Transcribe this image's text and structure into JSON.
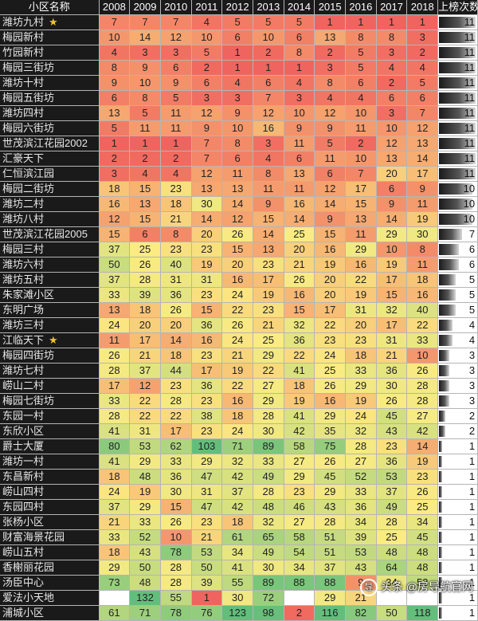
{
  "header": {
    "name_col": "小区名称",
    "years": [
      "2008",
      "2009",
      "2010",
      "2011",
      "2012",
      "2013",
      "2014",
      "2015",
      "2016",
      "2017",
      "2018"
    ],
    "count_col": "上榜次数"
  },
  "rows": [
    {
      "name": "潍坊九村",
      "star": "★",
      "ranks": [
        7,
        7,
        7,
        4,
        5,
        5,
        5,
        1,
        1,
        1,
        1
      ],
      "count": 11
    },
    {
      "name": "梅园新村",
      "ranks": [
        10,
        14,
        12,
        10,
        6,
        10,
        6,
        13,
        8,
        8,
        3
      ],
      "count": 11
    },
    {
      "name": "竹园新村",
      "ranks": [
        4,
        3,
        3,
        5,
        1,
        2,
        8,
        2,
        5,
        3,
        2
      ],
      "count": 11
    },
    {
      "name": "梅园三街坊",
      "ranks": [
        8,
        9,
        6,
        2,
        1,
        1,
        1,
        3,
        5,
        4,
        4
      ],
      "count": 11
    },
    {
      "name": "潍坊十村",
      "ranks": [
        9,
        10,
        9,
        6,
        4,
        6,
        4,
        8,
        6,
        2,
        5
      ],
      "count": 11
    },
    {
      "name": "梅园五街坊",
      "ranks": [
        6,
        8,
        5,
        3,
        3,
        7,
        3,
        4,
        4,
        6,
        6
      ],
      "count": 11
    },
    {
      "name": "潍坊四村",
      "ranks": [
        13,
        5,
        11,
        12,
        9,
        12,
        10,
        12,
        10,
        3,
        7
      ],
      "count": 11
    },
    {
      "name": "梅园六街坊",
      "ranks": [
        5,
        11,
        11,
        9,
        10,
        16,
        9,
        9,
        11,
        10,
        12
      ],
      "count": 11
    },
    {
      "name": "世茂滨江花园2002",
      "ranks": [
        1,
        1,
        1,
        7,
        8,
        3,
        11,
        5,
        2,
        12,
        13
      ],
      "count": 11
    },
    {
      "name": "汇豪天下",
      "ranks": [
        2,
        2,
        2,
        7,
        6,
        4,
        6,
        11,
        10,
        13,
        14
      ],
      "count": 11
    },
    {
      "name": "仁恒滨江园",
      "ranks": [
        3,
        4,
        4,
        12,
        11,
        8,
        13,
        6,
        7,
        20,
        17
      ],
      "count": 11
    },
    {
      "name": "梅园二街坊",
      "ranks": [
        18,
        15,
        23,
        13,
        13,
        11,
        11,
        12,
        17,
        6,
        9
      ],
      "count": 10
    },
    {
      "name": "潍坊二村",
      "ranks": [
        16,
        13,
        18,
        30,
        14,
        9,
        16,
        14,
        15,
        9,
        11
      ],
      "count": 10
    },
    {
      "name": "潍坊八村",
      "ranks": [
        12,
        15,
        21,
        14,
        12,
        15,
        14,
        9,
        13,
        14,
        19
      ],
      "count": 10
    },
    {
      "name": "世茂滨江花园2005",
      "ranks": [
        15,
        6,
        8,
        20,
        26,
        14,
        25,
        15,
        11,
        29,
        30
      ],
      "count": 7
    },
    {
      "name": "梅园三村",
      "ranks": [
        37,
        25,
        23,
        23,
        15,
        13,
        20,
        16,
        29,
        10,
        8
      ],
      "count": 6
    },
    {
      "name": "潍坊六村",
      "ranks": [
        50,
        26,
        40,
        19,
        20,
        23,
        21,
        19,
        16,
        19,
        11
      ],
      "count": 6
    },
    {
      "name": "潍坊五村",
      "ranks": [
        37,
        28,
        31,
        31,
        16,
        17,
        26,
        20,
        22,
        17,
        18
      ],
      "count": 5
    },
    {
      "name": "朱家滩小区",
      "ranks": [
        33,
        39,
        36,
        23,
        24,
        19,
        16,
        20,
        19,
        15,
        16
      ],
      "count": 5
    },
    {
      "name": "东明广场",
      "ranks": [
        13,
        18,
        26,
        15,
        22,
        23,
        15,
        17,
        31,
        32,
        40
      ],
      "count": 5
    },
    {
      "name": "潍坊三村",
      "ranks": [
        24,
        20,
        20,
        36,
        26,
        21,
        32,
        22,
        20,
        17,
        22
      ],
      "count": 4
    },
    {
      "name": "江临天下",
      "star": "★",
      "ranks": [
        11,
        17,
        14,
        16,
        24,
        25,
        36,
        23,
        23,
        31,
        33
      ],
      "count": 4
    },
    {
      "name": "梅园四街坊",
      "ranks": [
        26,
        21,
        18,
        23,
        21,
        29,
        22,
        24,
        18,
        21,
        10
      ],
      "count": 3
    },
    {
      "name": "潍坊七村",
      "ranks": [
        28,
        37,
        44,
        17,
        19,
        22,
        41,
        25,
        33,
        36,
        26
      ],
      "count": 3
    },
    {
      "name": "崂山二村",
      "ranks": [
        17,
        12,
        23,
        36,
        22,
        27,
        18,
        26,
        29,
        30,
        28
      ],
      "count": 3
    },
    {
      "name": "梅园七街坊",
      "ranks": [
        33,
        22,
        28,
        23,
        16,
        29,
        19,
        16,
        19,
        26,
        28
      ],
      "count": 3
    },
    {
      "name": "东园一村",
      "ranks": [
        28,
        22,
        22,
        38,
        18,
        28,
        41,
        29,
        24,
        45,
        27
      ],
      "count": 2
    },
    {
      "name": "东欣小区",
      "ranks": [
        41,
        31,
        17,
        23,
        24,
        30,
        42,
        35,
        32,
        43,
        42
      ],
      "count": 2
    },
    {
      "name": "爵士大厦",
      "ranks": [
        80,
        53,
        62,
        103,
        71,
        89,
        58,
        75,
        28,
        23,
        14
      ],
      "count": 1
    },
    {
      "name": "潍坊一村",
      "ranks": [
        41,
        29,
        33,
        29,
        32,
        33,
        27,
        26,
        27,
        36,
        19
      ],
      "count": 1
    },
    {
      "name": "东昌新村",
      "ranks": [
        18,
        48,
        36,
        47,
        42,
        49,
        29,
        45,
        52,
        53,
        23
      ],
      "count": 1
    },
    {
      "name": "崂山四村",
      "ranks": [
        24,
        19,
        30,
        31,
        37,
        28,
        23,
        29,
        33,
        37,
        26
      ],
      "count": 1
    },
    {
      "name": "东园四村",
      "ranks": [
        37,
        29,
        15,
        47,
        42,
        48,
        46,
        43,
        36,
        49,
        25
      ],
      "count": 1
    },
    {
      "name": "张杨小区",
      "ranks": [
        21,
        33,
        26,
        23,
        18,
        32,
        27,
        28,
        34,
        28,
        34
      ],
      "count": 1
    },
    {
      "name": "财富海景花园",
      "ranks": [
        33,
        52,
        10,
        21,
        61,
        65,
        58,
        51,
        39,
        25,
        45
      ],
      "count": 1
    },
    {
      "name": "崂山五村",
      "ranks": [
        18,
        43,
        78,
        53,
        34,
        49,
        54,
        51,
        53,
        48,
        48
      ],
      "count": 1
    },
    {
      "name": "香榭丽花园",
      "ranks": [
        29,
        50,
        28,
        50,
        41,
        30,
        34,
        37,
        43,
        64,
        48
      ],
      "count": 1
    },
    {
      "name": "汤臣中心",
      "ranks": [
        73,
        48,
        28,
        39,
        55,
        89,
        88,
        88,
        9,
        34,
        53
      ],
      "count": 1
    },
    {
      "name": "爱法小天地",
      "ranks": [
        null,
        132,
        55,
        1,
        30,
        72,
        null,
        29,
        21,
        null,
        null
      ],
      "count": 1
    },
    {
      "name": "浦城小区",
      "ranks": [
        61,
        71,
        78,
        76,
        123,
        98,
        2,
        116,
        82,
        50,
        118
      ],
      "count": 1
    }
  ],
  "watermark": {
    "text": "头条 @房导航官网",
    "logo": "导"
  }
}
